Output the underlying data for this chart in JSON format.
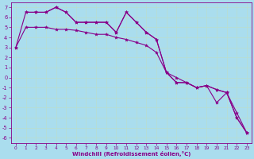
{
  "background_color": "#aaddee",
  "grid_color": "#bbddcc",
  "line_color": "#880088",
  "xlabel": "Windchill (Refroidissement éolien,°C)",
  "xlim": [
    -0.5,
    23.5
  ],
  "ylim": [
    -6.5,
    7.5
  ],
  "xticks": [
    0,
    1,
    2,
    3,
    4,
    5,
    6,
    7,
    8,
    9,
    10,
    11,
    12,
    13,
    14,
    15,
    16,
    17,
    18,
    19,
    20,
    21,
    22,
    23
  ],
  "yticks": [
    7,
    6,
    5,
    4,
    3,
    2,
    1,
    0,
    -1,
    -2,
    -3,
    -4,
    -5,
    -6
  ],
  "series1_x": [
    0,
    1,
    2,
    3,
    4,
    5,
    6,
    7,
    8,
    9,
    10,
    11,
    12,
    13,
    14,
    15,
    16,
    17,
    18,
    19,
    20,
    21,
    22,
    23
  ],
  "series1_y": [
    3.0,
    5.0,
    5.0,
    5.0,
    4.8,
    4.8,
    4.7,
    4.5,
    4.3,
    4.3,
    4.0,
    3.8,
    3.5,
    3.2,
    2.5,
    0.5,
    0.0,
    -0.5,
    -1.0,
    -0.8,
    -1.2,
    -1.5,
    -4.0,
    -5.5
  ],
  "series2_x": [
    0,
    1,
    2,
    3,
    4,
    5,
    6,
    7,
    8,
    9,
    10,
    11,
    12,
    13,
    14,
    15,
    16,
    17,
    18,
    19,
    20,
    21,
    22,
    23
  ],
  "series2_y": [
    3.0,
    6.5,
    6.5,
    6.5,
    7.0,
    6.5,
    5.5,
    5.5,
    5.5,
    5.5,
    4.5,
    6.5,
    5.5,
    4.5,
    3.8,
    0.5,
    -0.5,
    -0.5,
    -1.0,
    -0.8,
    -1.2,
    -1.5,
    -3.5,
    -5.5
  ],
  "series3_x": [
    1,
    2,
    3,
    4,
    5,
    6,
    7,
    8,
    9,
    10,
    11,
    12,
    13,
    14,
    15,
    16,
    17,
    18,
    19,
    20,
    21,
    22,
    23
  ],
  "series3_y": [
    6.5,
    6.5,
    6.5,
    7.0,
    6.5,
    5.5,
    5.5,
    5.5,
    5.5,
    4.5,
    6.5,
    5.5,
    4.5,
    3.8,
    0.5,
    -0.5,
    -0.5,
    -1.0,
    -0.8,
    -2.5,
    -1.5,
    -4.0,
    -5.5
  ]
}
